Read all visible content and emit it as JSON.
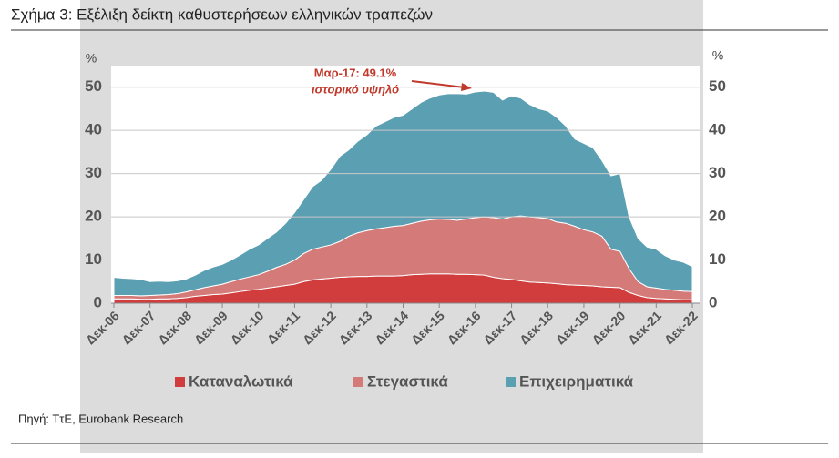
{
  "chart_data": {
    "type": "stacked-area",
    "title": "Σχήμα 3:  Εξέλιξη δείκτη καθυστερήσεων ελληνικών τραπεζών",
    "source": "Πηγή: ΤτΕ, Eurobank Research",
    "y_label": "%",
    "y2_label": "%",
    "annotation": [
      "Μαρ-17: 49.1%",
      "ιστορικό υψηλό"
    ],
    "categories": [
      "Δεκ-06",
      null,
      null,
      null,
      "Δεκ-07",
      null,
      null,
      null,
      "Δεκ-08",
      null,
      null,
      null,
      "Δεκ-09",
      null,
      null,
      null,
      "Δεκ-10",
      null,
      null,
      null,
      "Δεκ-11",
      null,
      null,
      null,
      "Δεκ-12",
      null,
      null,
      null,
      "Δεκ-13",
      null,
      null,
      null,
      "Δεκ-14",
      null,
      null,
      null,
      "Δεκ-15",
      null,
      null,
      null,
      "Δεκ-16",
      null,
      null,
      null,
      "Δεκ-17",
      null,
      null,
      null,
      "Δεκ-18",
      null,
      null,
      null,
      "Δεκ-19",
      null,
      null,
      null,
      "Δεκ-20",
      null,
      null,
      null,
      "Δεκ-21",
      null,
      null,
      null,
      "Δεκ-22"
    ],
    "series": [
      {
        "name": "Καταναλωτικά",
        "color": "#d13c3c",
        "values": [
          1.0,
          1.0,
          1.0,
          0.9,
          0.9,
          1.0,
          1.0,
          1.1,
          1.3,
          1.6,
          1.8,
          2.0,
          2.1,
          2.4,
          2.7,
          3.0,
          3.2,
          3.5,
          3.8,
          4.1,
          4.4,
          5.0,
          5.4,
          5.6,
          5.8,
          6.0,
          6.1,
          6.2,
          6.2,
          6.3,
          6.3,
          6.3,
          6.4,
          6.6,
          6.7,
          6.8,
          6.8,
          6.8,
          6.7,
          6.7,
          6.6,
          6.5,
          6.0,
          5.7,
          5.5,
          5.2,
          4.9,
          4.8,
          4.7,
          4.5,
          4.3,
          4.2,
          4.1,
          4.0,
          3.8,
          3.7,
          3.6,
          2.5,
          1.8,
          1.3,
          1.1,
          1.0,
          0.9,
          0.8,
          0.8
        ]
      },
      {
        "name": "Στεγαστικά",
        "color": "#d47a79",
        "values": [
          0.8,
          0.8,
          0.8,
          0.8,
          0.9,
          0.9,
          1.0,
          1.1,
          1.3,
          1.5,
          1.8,
          2.0,
          2.3,
          2.6,
          2.9,
          3.1,
          3.4,
          3.9,
          4.5,
          4.9,
          5.6,
          6.5,
          7.1,
          7.4,
          7.7,
          8.3,
          9.4,
          10.1,
          10.6,
          10.9,
          11.2,
          11.5,
          11.6,
          11.9,
          12.3,
          12.5,
          12.7,
          12.6,
          12.5,
          12.8,
          13.2,
          13.5,
          13.8,
          13.8,
          14.5,
          15.0,
          15.1,
          15.0,
          14.9,
          14.3,
          14.2,
          13.6,
          12.9,
          12.5,
          11.7,
          8.8,
          8.4,
          5.5,
          3.2,
          2.5,
          2.4,
          2.2,
          2.1,
          2.0,
          1.9
        ]
      },
      {
        "name": "Επιχειρηματικά",
        "color": "#5b9fb3",
        "values": [
          4.2,
          4.0,
          3.9,
          3.8,
          3.2,
          3.2,
          3.0,
          3.0,
          3.0,
          3.4,
          4.0,
          4.4,
          4.6,
          5.0,
          5.6,
          6.4,
          6.9,
          7.6,
          8.2,
          9.5,
          11.0,
          12.5,
          14.5,
          15.5,
          17.5,
          19.7,
          20.0,
          21.2,
          22.2,
          23.8,
          24.5,
          25.2,
          25.5,
          26.5,
          27.5,
          28.2,
          28.7,
          29.1,
          29.3,
          28.9,
          29.1,
          29.1,
          29.0,
          27.5,
          28.0,
          27.3,
          26.0,
          25.2,
          24.9,
          24.2,
          22.5,
          20.2,
          20.0,
          19.5,
          17.5,
          17.0,
          18.0,
          12.0,
          10.0,
          9.2,
          9.0,
          7.8,
          7.0,
          6.7,
          5.8
        ]
      }
    ],
    "ylim": [
      0,
      55
    ],
    "yticks": [
      0,
      10,
      20,
      30,
      40,
      50
    ],
    "y2lim": [
      0,
      55
    ],
    "y2ticks": [
      0,
      10,
      20,
      30,
      40,
      50
    ],
    "grid": true
  }
}
